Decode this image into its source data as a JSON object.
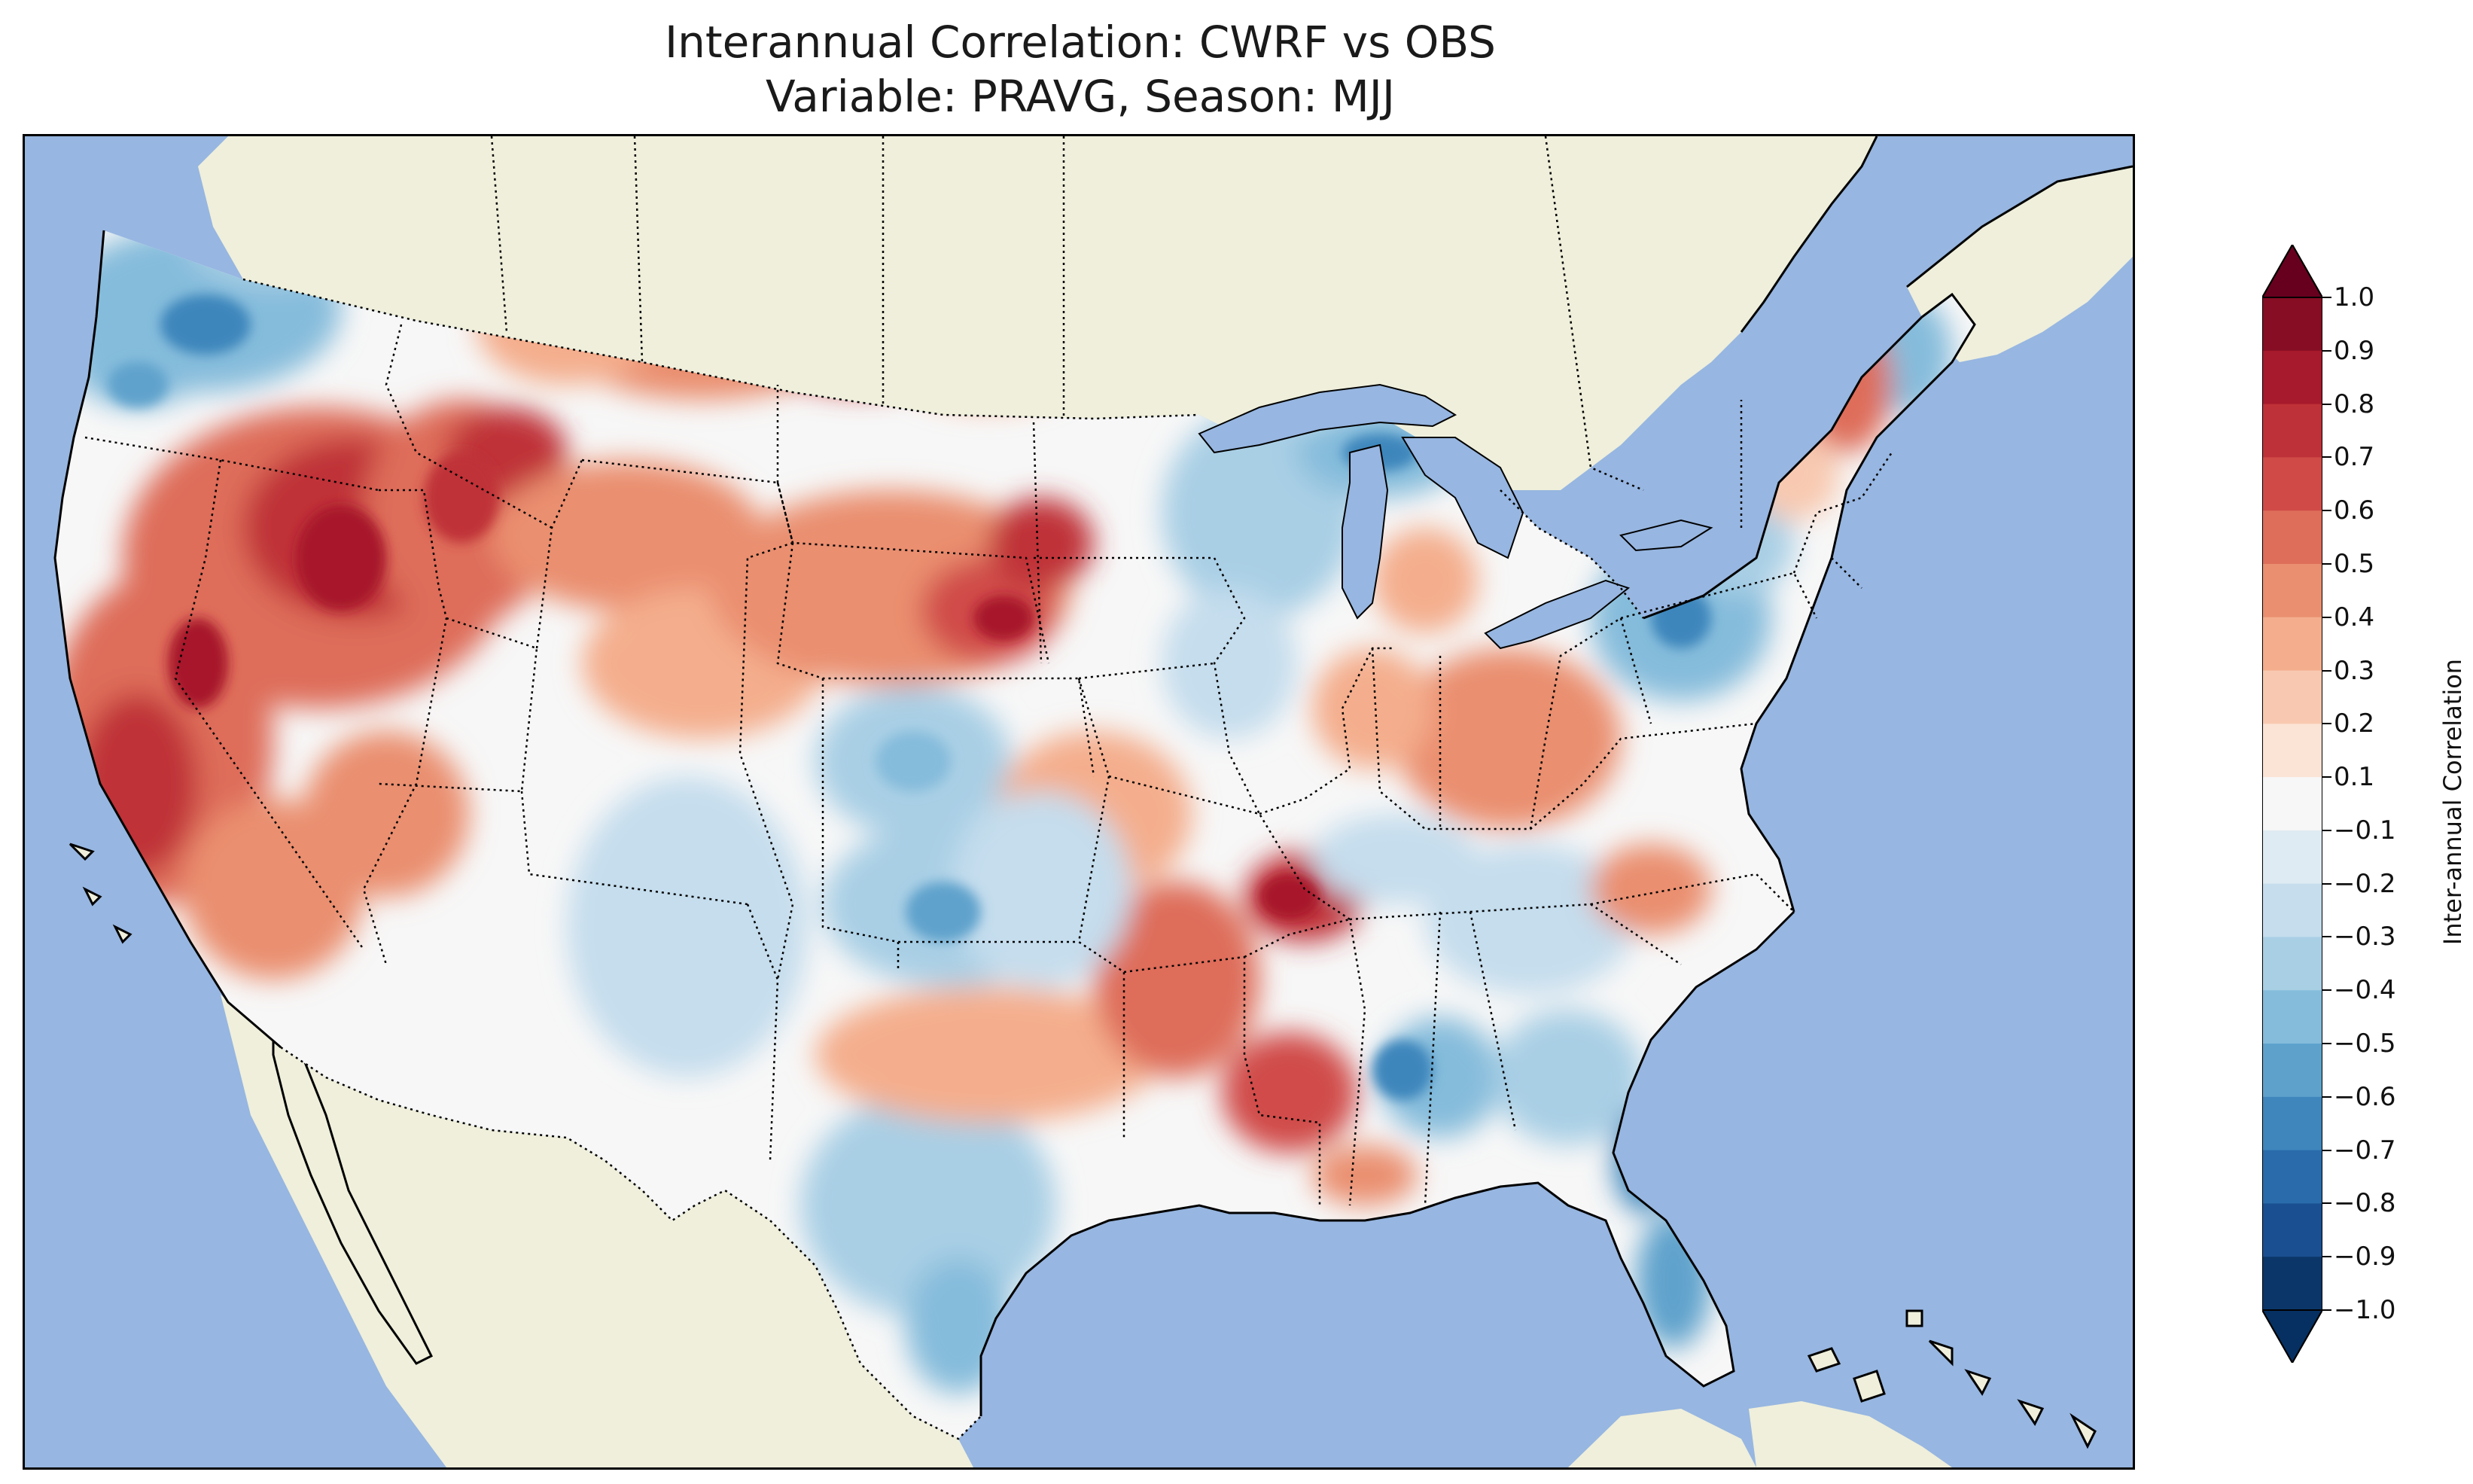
{
  "title": {
    "line1": "Interannual Correlation: CWRF vs OBS",
    "line2": "Variable: PRAVG, Season: MJJ"
  },
  "map": {
    "region": "CONUS",
    "ocean_color": "#97b6e1",
    "land_color": "#efefdb",
    "lake_color": "#97b6e1",
    "coastline_color": "#000000",
    "state_border_style": "dotted"
  },
  "colorbar": {
    "label": "Inter-annual Correlation",
    "extend": "both",
    "cmap": "RdBu_r",
    "ticks": [
      "1.0",
      "0.9",
      "0.8",
      "0.7",
      "0.6",
      "0.5",
      "0.4",
      "0.3",
      "0.2",
      "0.1",
      "−0.1",
      "−0.2",
      "−0.3",
      "−0.4",
      "−0.5",
      "−0.6",
      "−0.7",
      "−0.8",
      "−0.9",
      "−1.0"
    ],
    "colors": [
      "#67001f",
      "#860d24",
      "#a7192c",
      "#bf3138",
      "#d04b48",
      "#de6d5a",
      "#ea8f70",
      "#f4ae8d",
      "#f8c9b0",
      "#fbe3d5",
      "#f7f7f7",
      "#dfebf2",
      "#c5dded",
      "#a9cfe5",
      "#85bcdb",
      "#5ea2cc",
      "#3e86bc",
      "#2a6bab",
      "#1a5091",
      "#0b3669",
      "#053061"
    ]
  }
}
